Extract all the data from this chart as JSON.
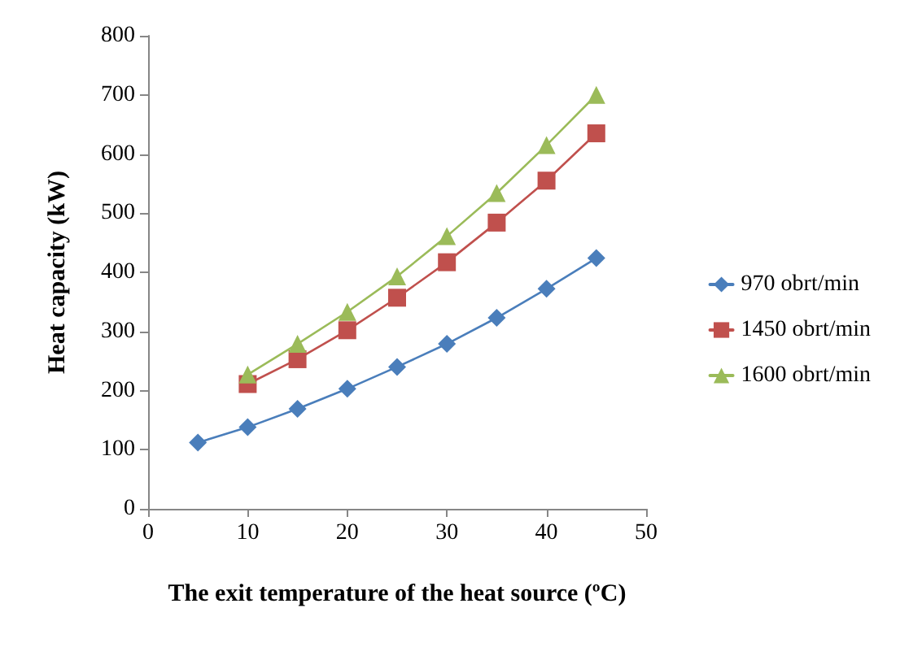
{
  "chart_data": {
    "type": "line",
    "xlabel": "The exit temperature of the heat source (ºC)",
    "ylabel": "Heat capacity (kW)",
    "xlim": [
      0,
      50
    ],
    "xticks": [
      0,
      10,
      20,
      30,
      40,
      50
    ],
    "ylim": [
      0,
      800
    ],
    "yticks": [
      0,
      100,
      200,
      300,
      400,
      500,
      600,
      700,
      800
    ],
    "grid": false,
    "legend": "right",
    "line_style": "solid",
    "series": [
      {
        "name": "970 obrt/min",
        "color": "#4a7ebb",
        "marker": "diamond",
        "x": [
          5,
          10,
          15,
          20,
          25,
          30,
          35,
          40,
          45
        ],
        "values": [
          112,
          138,
          169,
          203,
          240,
          279,
          323,
          372,
          424
        ]
      },
      {
        "name": "1450 obrt/min",
        "color": "#c0504d",
        "marker": "square",
        "x": [
          10,
          15,
          20,
          25,
          30,
          35,
          40,
          45
        ],
        "values": [
          211,
          253,
          302,
          357,
          417,
          484,
          555,
          635
        ]
      },
      {
        "name": "1600 obrt/min",
        "color": "#9bbb59",
        "marker": "triangle",
        "x": [
          10,
          15,
          20,
          25,
          30,
          35,
          40,
          45
        ],
        "values": [
          227,
          279,
          333,
          393,
          461,
          534,
          615,
          700
        ]
      }
    ]
  }
}
